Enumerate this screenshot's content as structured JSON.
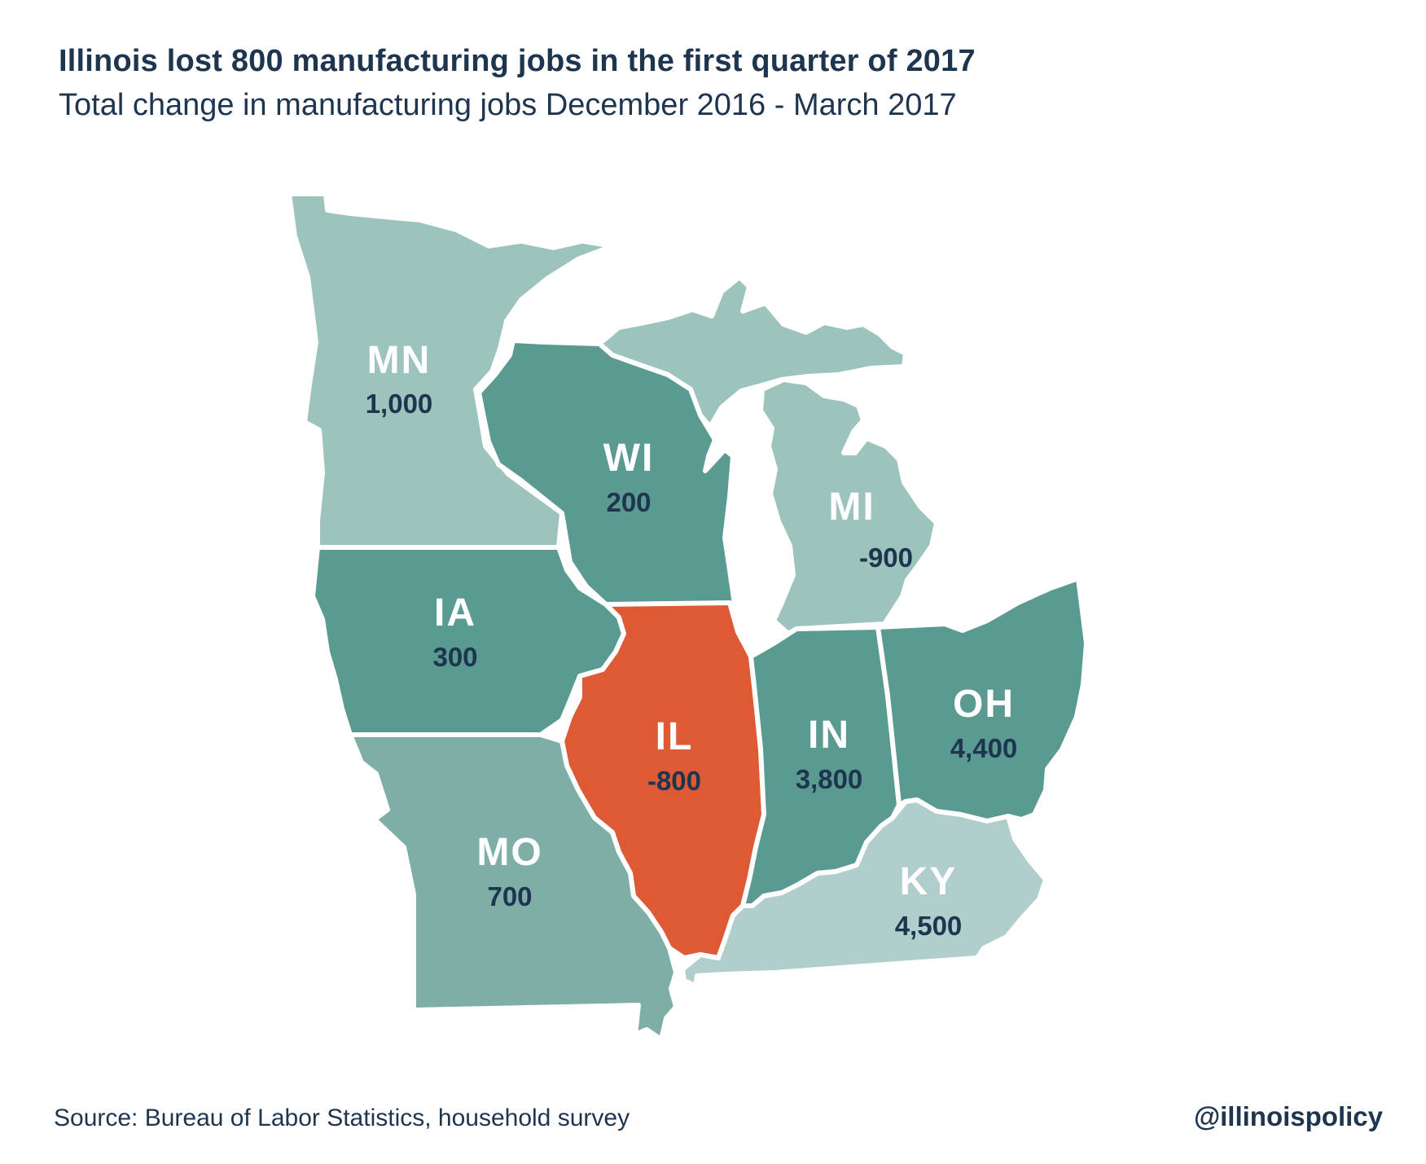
{
  "title": "Illinois lost 800 manufacturing jobs in the first quarter of 2017",
  "subtitle": "Total change in manufacturing jobs December 2016 - March 2017",
  "source": "Source: Bureau of Labor Statistics, household survey",
  "handle": "@illinoispolicy",
  "colors": {
    "highlight": "#dd5a34",
    "teal_dark": "#5a9a91",
    "teal_mid": "#7eaea6",
    "teal_light": "#9dc3bd",
    "teal_lightest": "#b0cecb",
    "text_dark": "#1e3550",
    "text_light": "#ffffff"
  },
  "states": [
    {
      "abbr": "MN",
      "value": "1,000",
      "change": 1000,
      "fill": "#9dc3bd"
    },
    {
      "abbr": "WI",
      "value": "200",
      "change": 200,
      "fill": "#5a9a91"
    },
    {
      "abbr": "MI",
      "value": "-900",
      "change": -900,
      "fill": "#9dc3bd"
    },
    {
      "abbr": "IA",
      "value": "300",
      "change": 300,
      "fill": "#5a9a91"
    },
    {
      "abbr": "IL",
      "value": "-800",
      "change": -800,
      "fill": "#dd5a34"
    },
    {
      "abbr": "IN",
      "value": "3,800",
      "change": 3800,
      "fill": "#5a9a91"
    },
    {
      "abbr": "OH",
      "value": "4,400",
      "change": 4400,
      "fill": "#5a9a91"
    },
    {
      "abbr": "MO",
      "value": "700",
      "change": 700,
      "fill": "#7eaea6"
    },
    {
      "abbr": "KY",
      "value": "4,500",
      "change": 4500,
      "fill": "#b0cecb"
    }
  ]
}
